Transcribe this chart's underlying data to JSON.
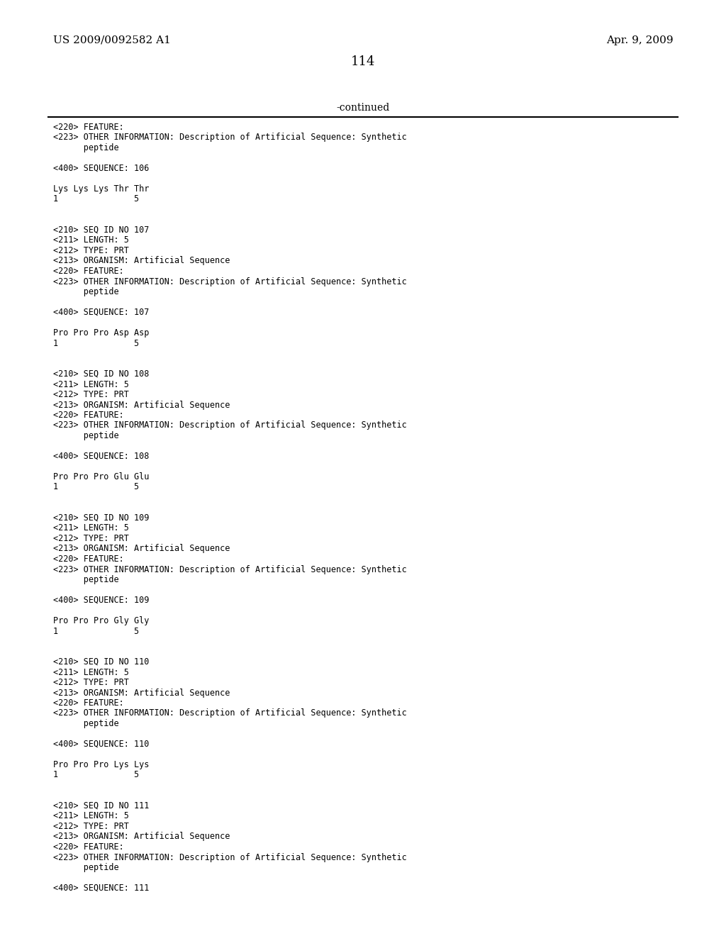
{
  "patent_left": "US 2009/0092582 A1",
  "patent_right": "Apr. 9, 2009",
  "page_number": "114",
  "continued_label": "-continued",
  "background_color": "#ffffff",
  "text_color": "#000000",
  "mono_font": "DejaVu Sans Mono",
  "serif_font": "DejaVu Serif",
  "lines": [
    "<220> FEATURE:",
    "<223> OTHER INFORMATION: Description of Artificial Sequence: Synthetic",
    "      peptide",
    "",
    "<400> SEQUENCE: 106",
    "",
    "Lys Lys Lys Thr Thr",
    "1               5",
    "",
    "",
    "<210> SEQ ID NO 107",
    "<211> LENGTH: 5",
    "<212> TYPE: PRT",
    "<213> ORGANISM: Artificial Sequence",
    "<220> FEATURE:",
    "<223> OTHER INFORMATION: Description of Artificial Sequence: Synthetic",
    "      peptide",
    "",
    "<400> SEQUENCE: 107",
    "",
    "Pro Pro Pro Asp Asp",
    "1               5",
    "",
    "",
    "<210> SEQ ID NO 108",
    "<211> LENGTH: 5",
    "<212> TYPE: PRT",
    "<213> ORGANISM: Artificial Sequence",
    "<220> FEATURE:",
    "<223> OTHER INFORMATION: Description of Artificial Sequence: Synthetic",
    "      peptide",
    "",
    "<400> SEQUENCE: 108",
    "",
    "Pro Pro Pro Glu Glu",
    "1               5",
    "",
    "",
    "<210> SEQ ID NO 109",
    "<211> LENGTH: 5",
    "<212> TYPE: PRT",
    "<213> ORGANISM: Artificial Sequence",
    "<220> FEATURE:",
    "<223> OTHER INFORMATION: Description of Artificial Sequence: Synthetic",
    "      peptide",
    "",
    "<400> SEQUENCE: 109",
    "",
    "Pro Pro Pro Gly Gly",
    "1               5",
    "",
    "",
    "<210> SEQ ID NO 110",
    "<211> LENGTH: 5",
    "<212> TYPE: PRT",
    "<213> ORGANISM: Artificial Sequence",
    "<220> FEATURE:",
    "<223> OTHER INFORMATION: Description of Artificial Sequence: Synthetic",
    "      peptide",
    "",
    "<400> SEQUENCE: 110",
    "",
    "Pro Pro Pro Lys Lys",
    "1               5",
    "",
    "",
    "<210> SEQ ID NO 111",
    "<211> LENGTH: 5",
    "<212> TYPE: PRT",
    "<213> ORGANISM: Artificial Sequence",
    "<220> FEATURE:",
    "<223> OTHER INFORMATION: Description of Artificial Sequence: Synthetic",
    "      peptide",
    "",
    "<400> SEQUENCE: 111"
  ]
}
